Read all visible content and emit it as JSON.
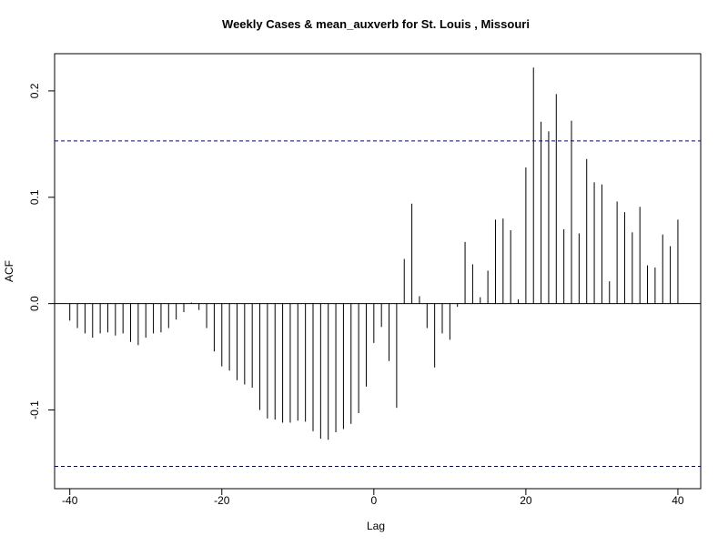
{
  "chart_data": {
    "type": "bar",
    "subtype": "acf-spikes",
    "title": "Weekly Cases & mean_auxverb for St. Louis , Missouri",
    "xlabel": "Lag",
    "ylabel": "ACF",
    "xlim": [
      -42,
      43
    ],
    "ylim": [
      -0.174,
      0.235
    ],
    "x_ticks": [
      -40,
      -20,
      0,
      20,
      40
    ],
    "y_ticks": [
      -0.1,
      0.0,
      0.1,
      0.2
    ],
    "y_tick_labels": [
      "-0.1",
      "0.0",
      "0.1",
      "0.2"
    ],
    "confidence_band": 0.153,
    "grid": false,
    "colors": {
      "spike": "#000000",
      "band": "#00008b",
      "zero_line": "#000000"
    },
    "lags": [
      -40,
      -39,
      -38,
      -37,
      -36,
      -35,
      -34,
      -33,
      -32,
      -31,
      -30,
      -29,
      -28,
      -27,
      -26,
      -25,
      -24,
      -23,
      -22,
      -21,
      -20,
      -19,
      -18,
      -17,
      -16,
      -15,
      -14,
      -13,
      -12,
      -11,
      -10,
      -9,
      -8,
      -7,
      -6,
      -5,
      -4,
      -3,
      -2,
      -1,
      0,
      1,
      2,
      3,
      4,
      5,
      6,
      7,
      8,
      9,
      10,
      11,
      12,
      13,
      14,
      15,
      16,
      17,
      18,
      19,
      20,
      21,
      22,
      23,
      24,
      25,
      26,
      27,
      28,
      29,
      30,
      31,
      32,
      33,
      34,
      35,
      36,
      37,
      38,
      39,
      40
    ],
    "values": [
      -0.016,
      -0.023,
      -0.028,
      -0.032,
      -0.028,
      -0.027,
      -0.03,
      -0.028,
      -0.036,
      -0.039,
      -0.032,
      -0.028,
      -0.027,
      -0.023,
      -0.015,
      -0.008,
      0.001,
      -0.006,
      -0.023,
      -0.045,
      -0.059,
      -0.063,
      -0.072,
      -0.076,
      -0.079,
      -0.1,
      -0.108,
      -0.109,
      -0.112,
      -0.112,
      -0.11,
      -0.111,
      -0.12,
      -0.127,
      -0.128,
      -0.121,
      -0.118,
      -0.113,
      -0.103,
      -0.078,
      -0.037,
      -0.022,
      -0.054,
      -0.098,
      0.042,
      0.094,
      0.007,
      -0.023,
      -0.06,
      -0.028,
      -0.034,
      -0.003,
      0.058,
      0.037,
      0.006,
      0.031,
      0.079,
      0.08,
      0.069,
      0.004,
      0.128,
      0.222,
      0.171,
      0.162,
      0.197,
      0.07,
      0.172,
      0.066,
      0.136,
      0.114,
      0.112,
      0.021,
      0.096,
      0.086,
      0.067,
      0.091,
      0.036,
      0.034,
      0.065,
      0.054,
      0.079
    ]
  }
}
